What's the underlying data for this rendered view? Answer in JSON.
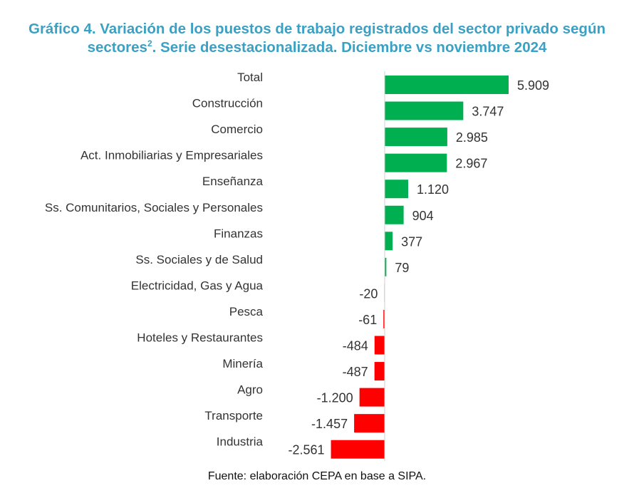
{
  "title": {
    "line1": "Gráfico 4. Variación de los puestos de trabajo registrados del sector privado según",
    "line2_start": "sectores",
    "superscript": "2",
    "line2_end": ". Serie desestacionalizada. Diciembre vs noviembre 2024"
  },
  "source": "Fuente: elaboración CEPA en base a SIPA.",
  "chart_data": {
    "type": "bar",
    "orientation": "horizontal",
    "title": "Gráfico 4. Variación de los puestos de trabajo registrados del sector privado según sectores². Serie desestacionalizada. Diciembre vs noviembre 2024",
    "categories": [
      "Total",
      "Construcción",
      "Comercio",
      "Act. Inmobiliarias y Empresariales",
      "Enseñanza",
      "Ss. Comunitarios, Sociales y Personales",
      "Finanzas",
      "Ss. Sociales y de Salud",
      "Electricidad, Gas y Agua",
      "Pesca",
      "Hoteles y Restaurantes",
      "Minería",
      "Agro",
      "Transporte",
      "Industria"
    ],
    "values": [
      5909,
      3747,
      2985,
      2967,
      1120,
      904,
      377,
      79,
      -20,
      -61,
      -484,
      -487,
      -1200,
      -1457,
      -2561
    ],
    "data_labels": [
      "5.909",
      "3.747",
      "2.985",
      "2.967",
      "1.120",
      "904",
      "377",
      "79",
      "-20",
      "-61",
      "-484",
      "-487",
      "-1.200",
      "-1.457",
      "-2.561"
    ],
    "colors": {
      "positive": "#00b050",
      "negative": "#ff0000"
    },
    "grid": false,
    "legend": "none"
  }
}
